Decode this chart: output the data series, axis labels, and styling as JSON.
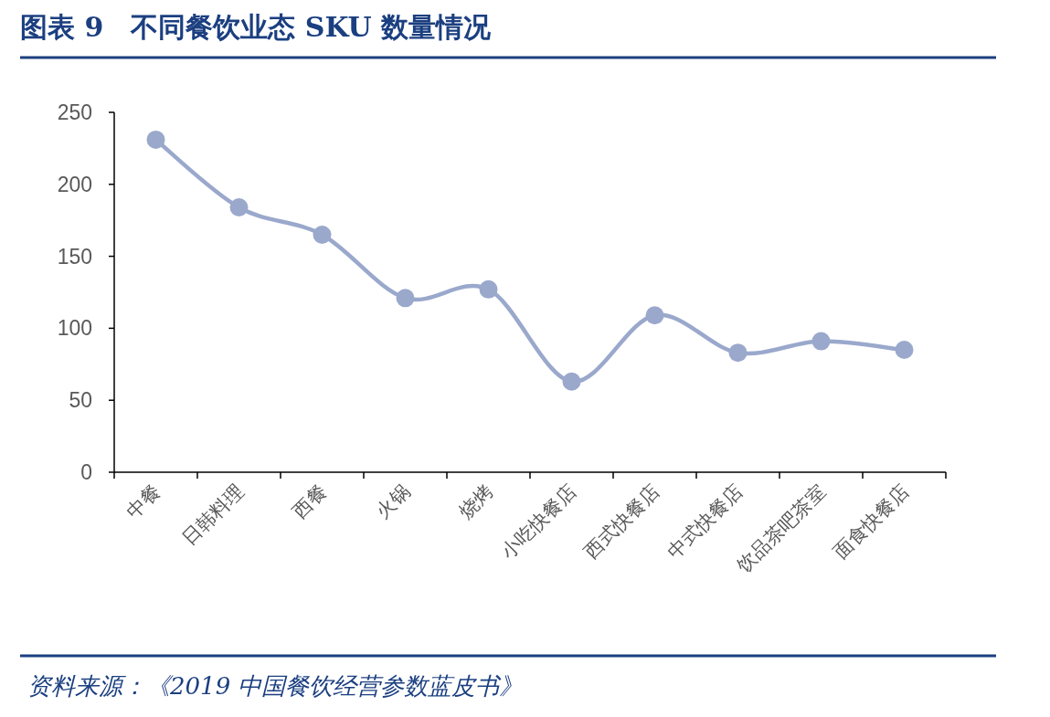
{
  "chart_data": {
    "type": "line",
    "title": "图表 9　不同餐饮业态 SKU 数量情况",
    "categories": [
      "中餐",
      "日韩料理",
      "西餐",
      "火锅",
      "烧烤",
      "小吃快餐店",
      "西式快餐店",
      "中式快餐店",
      "饮品茶吧茶室",
      "面食快餐店"
    ],
    "series": [
      {
        "color": "#9aa8cc",
        "values": [
          231,
          184,
          165,
          121,
          127,
          63,
          109,
          83,
          91,
          85
        ]
      }
    ],
    "ylim": [
      0,
      250
    ],
    "yticks": [
      0,
      50,
      100,
      150,
      200,
      250
    ],
    "marker": "circle",
    "line_style": "solid",
    "grid": false,
    "annotations": [
      "资料来源：《2019 中国餐饮经营参数蓝皮书》"
    ]
  }
}
